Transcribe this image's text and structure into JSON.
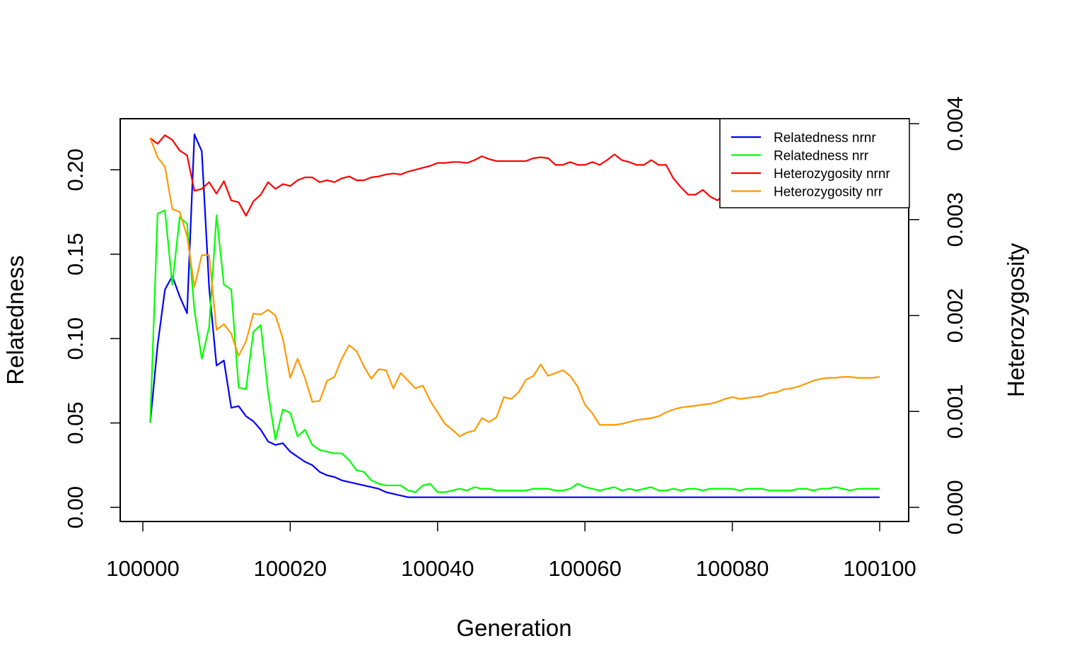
{
  "chart_data": {
    "type": "line",
    "xlabel": "Generation",
    "ylabel": "Relatedness",
    "y2label": "Heterozygosity",
    "xlim": [
      100000,
      100100
    ],
    "ylim": [
      0,
      0.22
    ],
    "y2lim": [
      0,
      0.004
    ],
    "xticks": [
      "100000",
      "100020",
      "100040",
      "100060",
      "100080",
      "100100"
    ],
    "yticks": [
      "0.00",
      "0.05",
      "0.10",
      "0.15",
      "0.20"
    ],
    "y2ticks": [
      "0.000",
      "0.001",
      "0.002",
      "0.003",
      "0.004"
    ],
    "x_start": 100001,
    "x_step": 1,
    "grid": false,
    "legend": "top-right",
    "series": [
      {
        "name": "Relatedness nrnr",
        "axis": "left",
        "color": "#0000ff",
        "values": [
          0.05,
          0.096,
          0.129,
          0.137,
          0.125,
          0.115,
          0.221,
          0.211,
          0.13,
          0.084,
          0.087,
          0.059,
          0.06,
          0.054,
          0.051,
          0.046,
          0.039,
          0.037,
          0.038,
          0.033,
          0.03,
          0.027,
          0.025,
          0.021,
          0.019,
          0.018,
          0.016,
          0.015,
          0.014,
          0.013,
          0.012,
          0.011,
          0.009,
          0.008,
          0.007,
          0.006,
          0.006,
          0.006,
          0.006,
          0.006,
          0.006,
          0.006,
          0.006,
          0.006,
          0.006,
          0.006,
          0.006,
          0.006,
          0.006,
          0.006,
          0.006,
          0.006,
          0.006,
          0.006,
          0.006,
          0.006,
          0.006,
          0.006,
          0.006,
          0.006,
          0.006,
          0.006,
          0.006,
          0.006,
          0.006,
          0.006,
          0.006,
          0.006,
          0.006,
          0.006,
          0.006,
          0.006,
          0.006,
          0.006,
          0.006,
          0.006,
          0.006,
          0.006,
          0.006,
          0.006,
          0.006,
          0.006,
          0.006,
          0.006,
          0.006,
          0.006,
          0.006,
          0.006,
          0.006,
          0.006,
          0.006,
          0.006,
          0.006,
          0.006,
          0.006,
          0.006,
          0.006,
          0.006,
          0.006,
          0.006
        ]
      },
      {
        "name": "Relatedness nrr",
        "axis": "left",
        "color": "#00ff00",
        "values": [
          0.05,
          0.174,
          0.176,
          0.132,
          0.172,
          0.168,
          0.117,
          0.088,
          0.107,
          0.173,
          0.132,
          0.129,
          0.071,
          0.07,
          0.104,
          0.108,
          0.068,
          0.04,
          0.058,
          0.056,
          0.042,
          0.046,
          0.037,
          0.034,
          0.033,
          0.032,
          0.032,
          0.028,
          0.022,
          0.021,
          0.016,
          0.014,
          0.013,
          0.013,
          0.013,
          0.01,
          0.009,
          0.013,
          0.014,
          0.009,
          0.009,
          0.01,
          0.011,
          0.01,
          0.012,
          0.011,
          0.011,
          0.01,
          0.01,
          0.01,
          0.01,
          0.01,
          0.011,
          0.011,
          0.011,
          0.01,
          0.01,
          0.011,
          0.014,
          0.012,
          0.011,
          0.01,
          0.011,
          0.012,
          0.01,
          0.011,
          0.01,
          0.011,
          0.012,
          0.01,
          0.01,
          0.011,
          0.01,
          0.011,
          0.011,
          0.01,
          0.011,
          0.011,
          0.011,
          0.011,
          0.01,
          0.011,
          0.011,
          0.011,
          0.01,
          0.01,
          0.01,
          0.01,
          0.011,
          0.011,
          0.01,
          0.011,
          0.011,
          0.012,
          0.011,
          0.01,
          0.011,
          0.011,
          0.011,
          0.011
        ]
      },
      {
        "name": "Heterozygosity nrnr",
        "axis": "right",
        "color": "#ff0000",
        "values": [
          0.00385,
          0.00379,
          0.00388,
          0.00383,
          0.00372,
          0.00367,
          0.0033,
          0.00332,
          0.00339,
          0.00327,
          0.0034,
          0.0032,
          0.00318,
          0.00304,
          0.00319,
          0.00326,
          0.00339,
          0.00332,
          0.00337,
          0.00335,
          0.00341,
          0.00344,
          0.00344,
          0.00339,
          0.00341,
          0.00339,
          0.00343,
          0.00345,
          0.00341,
          0.00341,
          0.00344,
          0.00345,
          0.00347,
          0.00348,
          0.00347,
          0.0035,
          0.00352,
          0.00354,
          0.00356,
          0.00359,
          0.00359,
          0.0036,
          0.0036,
          0.00359,
          0.00362,
          0.00366,
          0.00363,
          0.00361,
          0.00361,
          0.00361,
          0.00361,
          0.00361,
          0.00364,
          0.00365,
          0.00364,
          0.00357,
          0.00357,
          0.0036,
          0.00357,
          0.00357,
          0.0036,
          0.00357,
          0.00362,
          0.00368,
          0.00362,
          0.0036,
          0.00357,
          0.00357,
          0.00362,
          0.00357,
          0.00357,
          0.00343,
          0.00334,
          0.00326,
          0.00326,
          0.00331,
          0.00324,
          0.0032,
          0.00327,
          0.0032,
          0.00322,
          0.00324,
          0.00326,
          0.00328,
          0.0033,
          0.00331,
          0.00332,
          0.00333,
          0.00334,
          0.00334,
          0.00335,
          0.00336,
          0.00337,
          0.00338,
          0.00338,
          0.00338,
          0.00339,
          0.00339,
          0.0034,
          0.0034
        ]
      },
      {
        "name": "Heterozygosity nrr",
        "axis": "right",
        "color": "#ff9900",
        "values": [
          0.00385,
          0.00365,
          0.00355,
          0.00311,
          0.00308,
          0.00283,
          0.0023,
          0.00263,
          0.00263,
          0.00185,
          0.00191,
          0.00181,
          0.00158,
          0.00173,
          0.00202,
          0.00201,
          0.00206,
          0.002,
          0.00176,
          0.00135,
          0.00155,
          0.00135,
          0.0011,
          0.00111,
          0.00132,
          0.00136,
          0.00155,
          0.00169,
          0.00163,
          0.00147,
          0.00134,
          0.00144,
          0.00143,
          0.00124,
          0.0014,
          0.00132,
          0.00124,
          0.00127,
          0.00111,
          0.00099,
          0.00087,
          0.00081,
          0.00074,
          0.00078,
          0.0008,
          0.00093,
          0.00089,
          0.00094,
          0.00115,
          0.00113,
          0.0012,
          0.00133,
          0.00137,
          0.00149,
          0.00137,
          0.0014,
          0.00143,
          0.00137,
          0.00126,
          0.00107,
          0.00098,
          0.00086,
          0.00086,
          0.00086,
          0.00087,
          0.00089,
          0.00091,
          0.00092,
          0.00093,
          0.00095,
          0.00099,
          0.00102,
          0.00104,
          0.00105,
          0.00106,
          0.00107,
          0.00108,
          0.0011,
          0.00113,
          0.00115,
          0.00113,
          0.00114,
          0.00115,
          0.00116,
          0.00119,
          0.0012,
          0.00123,
          0.00124,
          0.00126,
          0.00129,
          0.00132,
          0.00134,
          0.00135,
          0.00135,
          0.00136,
          0.00136,
          0.00135,
          0.00135,
          0.00135,
          0.00136
        ]
      }
    ]
  }
}
